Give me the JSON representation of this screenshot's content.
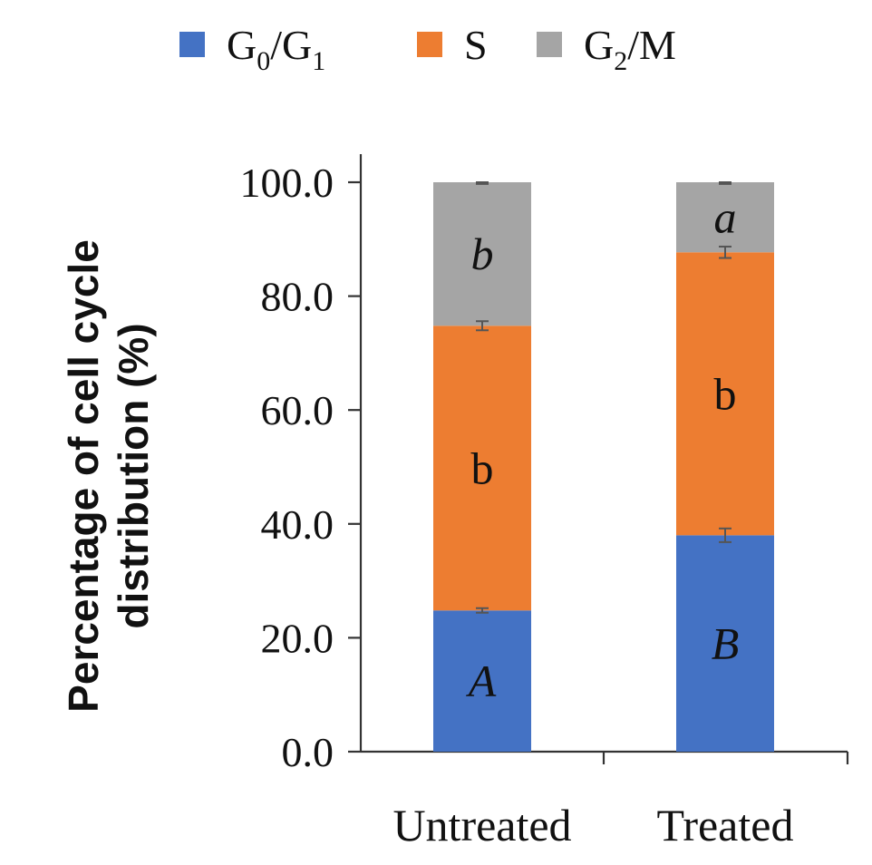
{
  "chart_data": {
    "type": "bar",
    "stacked": true,
    "title": "",
    "xlabel": "",
    "ylabel_lines": [
      "Percentage of cell cycle",
      "distribution (%)"
    ],
    "ylim": [
      0,
      100
    ],
    "yticks": [
      0,
      20,
      40,
      60,
      80,
      100
    ],
    "ytick_labels": [
      "0.0",
      "20.0",
      "40.0",
      "60.0",
      "80.0",
      "100.0"
    ],
    "categories": [
      "Untreated",
      "Treated"
    ],
    "legend_position": "top",
    "series": [
      {
        "name": "G0/G1",
        "legend_parts": [
          "G",
          "0",
          "/G",
          "1"
        ],
        "color": "#4472C4",
        "values": [
          24.8,
          38.0
        ],
        "errors": [
          0.4,
          1.2
        ],
        "labels": [
          "A",
          "B"
        ],
        "label_italic": true
      },
      {
        "name": "S",
        "legend_parts": [
          "S"
        ],
        "color": "#ED7D31",
        "values": [
          50.0,
          49.7
        ],
        "errors": [
          0.8,
          1.0
        ],
        "labels": [
          "b",
          "b"
        ],
        "label_italic": false
      },
      {
        "name": "G2/M",
        "legend_parts": [
          "G",
          "2",
          "/M"
        ],
        "color": "#A5A5A5",
        "values": [
          25.2,
          12.3
        ],
        "errors": [
          0.3,
          0.3
        ],
        "labels": [
          "b",
          "a"
        ],
        "label_italic": true
      }
    ]
  }
}
